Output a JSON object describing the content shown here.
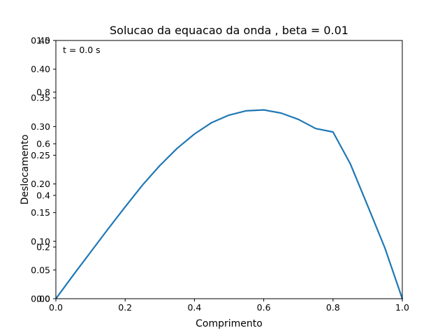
{
  "chart_data": {
    "type": "line",
    "title": "Solucao da equacao da onda , beta = 0.01",
    "xlabel": "Comprimento",
    "ylabel": "Deslocamento",
    "annotation": "t =  0.0 s",
    "xlim": [
      0,
      1
    ],
    "x_ticks": [
      "0.0",
      "0.2",
      "0.4",
      "0.6",
      "0.8",
      "1.0"
    ],
    "y_ticks_left_a": [
      "0.00",
      "0.05",
      "0.10",
      "0.15",
      "0.20",
      "0.25",
      "0.30",
      "0.35",
      "0.40",
      "0.45"
    ],
    "y_ticks_left_b": [
      "0.0",
      "0.2",
      "0.4",
      "0.6",
      "0.8",
      "1.0"
    ],
    "ylim_a": [
      0,
      0.45
    ],
    "ylim_b": [
      0,
      1.0
    ],
    "grid": false,
    "colors": {
      "line": "#1f77b4"
    },
    "series": [
      {
        "x": [
          0.0,
          0.05,
          0.1,
          0.15,
          0.2,
          0.25,
          0.3,
          0.35,
          0.4,
          0.45,
          0.5,
          0.55,
          0.6,
          0.65,
          0.7,
          0.75,
          0.8,
          0.85,
          0.9,
          0.95,
          1.0
        ],
        "y": [
          0.0,
          0.041,
          0.081,
          0.121,
          0.16,
          0.198,
          0.232,
          0.262,
          0.287,
          0.307,
          0.32,
          0.3275,
          0.329,
          0.3235,
          0.3125,
          0.2965,
          0.2905,
          0.235,
          0.162,
          0.088,
          0.0
        ]
      }
    ]
  }
}
